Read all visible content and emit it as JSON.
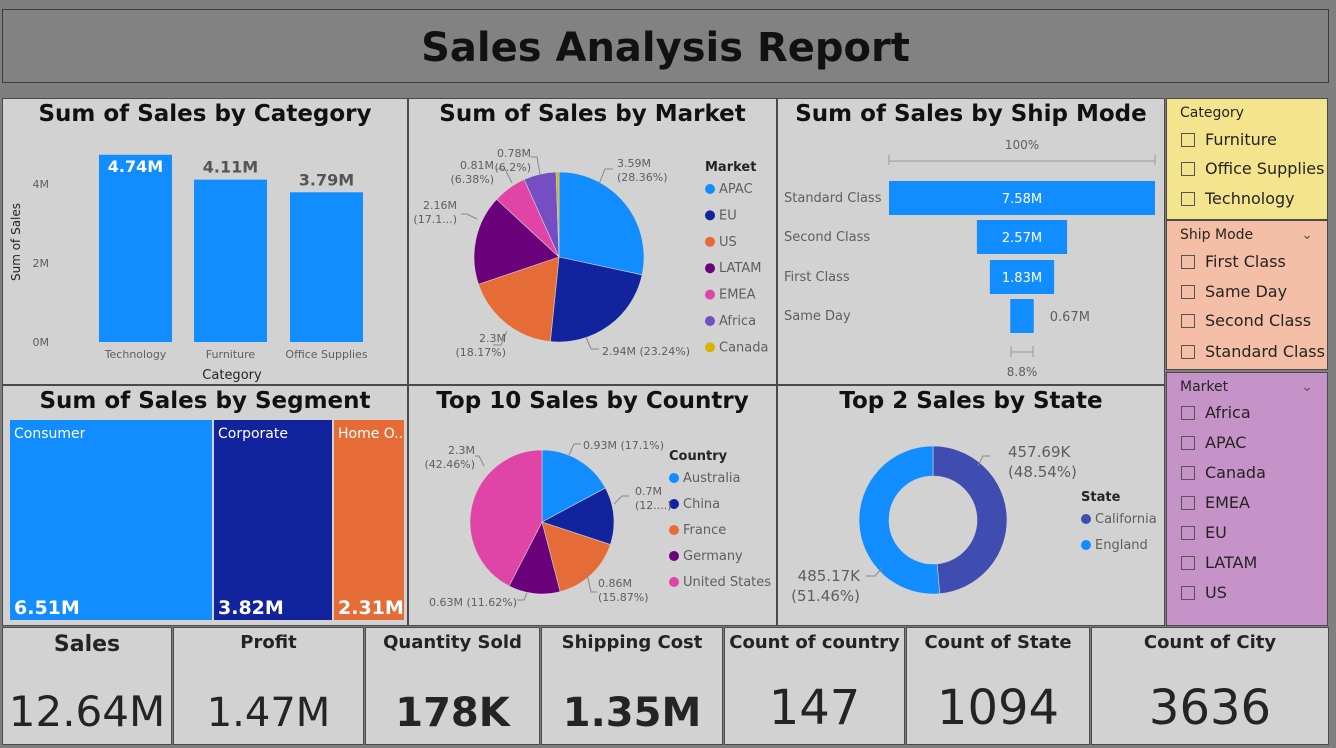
{
  "report_title": "Sales Analysis Report",
  "colors": {
    "blue": "#118DFF",
    "navy": "#12239E",
    "orange": "#E66C37",
    "purple": "#6B007B",
    "pink": "#E044A7",
    "violet": "#744EC2",
    "gold": "#D9B300",
    "indigo": "#3F4CB0"
  },
  "category_chart": {
    "title": "Sum of Sales by Category",
    "xlabel": "Category",
    "ylabel": "Sum of Sales",
    "yticks": [
      "0M",
      "2M",
      "4M"
    ]
  },
  "market_chart": {
    "title": "Sum of Sales by Market",
    "legend_title": "Market",
    "labels": [
      {
        "value": "3.59M",
        "pct": "(28.36%)"
      },
      {
        "value": "2.94M",
        "pct": "(23.24%)"
      },
      {
        "value": "2.3M",
        "pct": "(18.17%)"
      },
      {
        "value": "2.16M",
        "pct": "(17.1...)"
      },
      {
        "value": "0.81M",
        "pct": "(6.38%)"
      },
      {
        "value": "0.78M",
        "pct": "(6.2%)"
      }
    ]
  },
  "shipmode_chart": {
    "title": "Sum of Sales by Ship Mode",
    "top_pct": "100%",
    "bottom_pct": "8.8%"
  },
  "segment_chart": {
    "title": "Sum of Sales by Segment",
    "items": [
      {
        "label": "Consumer",
        "value": "6.51M"
      },
      {
        "label": "Corporate",
        "value": "3.82M"
      },
      {
        "label": "Home O...",
        "value": "2.31M"
      }
    ]
  },
  "country_chart": {
    "title": "Top 10 Sales by Country",
    "legend_title": "Country",
    "labels": [
      {
        "value": "0.93M",
        "pct": "(17.1%)"
      },
      {
        "value": "0.7M",
        "pct": "(12....)"
      },
      {
        "value": "0.86M",
        "pct": "(15.87%)"
      },
      {
        "value": "0.63M",
        "pct": "(11.62%)"
      },
      {
        "value": "2.3M",
        "pct": "(42.46%)"
      }
    ]
  },
  "state_chart": {
    "title": "Top 2 Sales by State",
    "legend_title": "State",
    "labels": [
      {
        "value": "457.69K",
        "pct": "(48.54%)"
      },
      {
        "value": "485.17K",
        "pct": "(51.46%)"
      }
    ]
  },
  "chart_data": [
    {
      "type": "bar",
      "title": "Sum of Sales by Category",
      "categories": [
        "Technology",
        "Furniture",
        "Office Supplies"
      ],
      "values": [
        4.74,
        4.11,
        3.79
      ],
      "value_labels": [
        "4.74M",
        "4.11M",
        "3.79M"
      ],
      "xlabel": "Category",
      "ylabel": "Sum of Sales",
      "ylim": [
        0,
        5
      ]
    },
    {
      "type": "pie",
      "title": "Sum of Sales by Market",
      "categories": [
        "APAC",
        "EU",
        "US",
        "LATAM",
        "EMEA",
        "Africa",
        "Canada"
      ],
      "values": [
        3.59,
        2.94,
        2.3,
        2.16,
        0.81,
        0.78,
        0.07
      ],
      "percents": [
        28.36,
        23.24,
        18.17,
        17.1,
        6.38,
        6.2,
        0.55
      ]
    },
    {
      "type": "bar",
      "title": "Sum of Sales by Ship Mode",
      "categories": [
        "Standard Class",
        "Second Class",
        "First Class",
        "Same Day"
      ],
      "values": [
        7.58,
        2.57,
        1.83,
        0.67
      ],
      "value_labels": [
        "7.58M",
        "2.57M",
        "1.83M",
        "0.67M"
      ]
    },
    {
      "type": "bar",
      "title": "Sum of Sales by Segment",
      "categories": [
        "Consumer",
        "Corporate",
        "Home Office"
      ],
      "values": [
        6.51,
        3.82,
        2.31
      ]
    },
    {
      "type": "pie",
      "title": "Top 10 Sales by Country",
      "categories": [
        "Australia",
        "China",
        "France",
        "Germany",
        "United States"
      ],
      "values": [
        0.93,
        0.7,
        0.86,
        0.63,
        2.3
      ],
      "percents": [
        17.1,
        12.95,
        15.87,
        11.62,
        42.46
      ]
    },
    {
      "type": "pie",
      "title": "Top 2 Sales by State",
      "categories": [
        "California",
        "England"
      ],
      "values": [
        457.69,
        485.17
      ],
      "percents": [
        48.54,
        51.46
      ]
    }
  ],
  "slicers": {
    "category": {
      "title": "Category",
      "items": [
        "Furniture",
        "Office Supplies",
        "Technology"
      ]
    },
    "ship_mode": {
      "title": "Ship Mode",
      "items": [
        "First Class",
        "Same Day",
        "Second Class",
        "Standard Class"
      ]
    },
    "market": {
      "title": "Market",
      "items": [
        "Africa",
        "APAC",
        "Canada",
        "EMEA",
        "EU",
        "LATAM",
        "US"
      ]
    }
  },
  "cards": [
    {
      "label": "Sales",
      "value": "12.64M"
    },
    {
      "label": "Profit",
      "value": "1.47M"
    },
    {
      "label": "Quantity Sold",
      "value": "178K"
    },
    {
      "label": "Shipping Cost",
      "value": "1.35M"
    },
    {
      "label": "Count of country",
      "value": "147"
    },
    {
      "label": "Count of State",
      "value": "1094"
    },
    {
      "label": "Count of City",
      "value": "3636"
    }
  ]
}
